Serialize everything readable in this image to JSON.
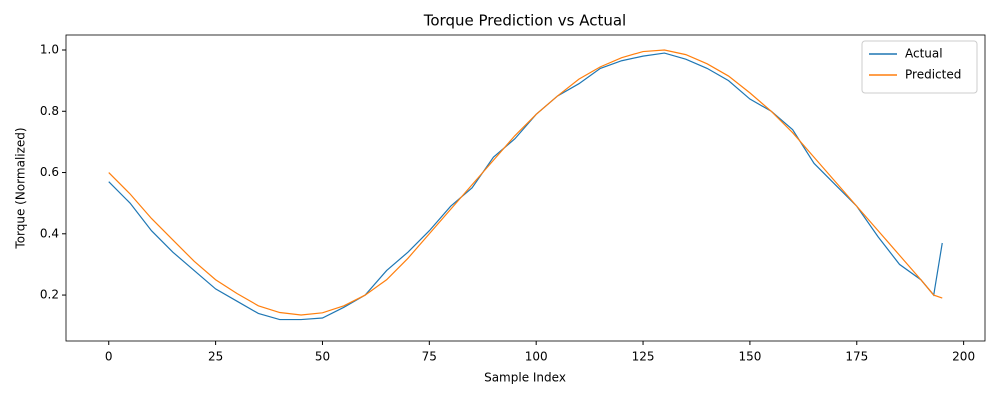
{
  "chart_data": {
    "type": "line",
    "title": "Torque Prediction vs Actual",
    "x_label": "Sample Index",
    "y_label": "Torque (Normalized)",
    "x": [
      0,
      5,
      10,
      15,
      20,
      25,
      30,
      35,
      40,
      45,
      50,
      55,
      60,
      65,
      70,
      75,
      80,
      85,
      90,
      95,
      100,
      105,
      110,
      115,
      120,
      125,
      130,
      135,
      140,
      145,
      150,
      155,
      160,
      165,
      170,
      175,
      180,
      185,
      190,
      193,
      195
    ],
    "series": [
      {
        "name": "Actual",
        "color": "#1f77b4",
        "values": [
          0.57,
          0.5,
          0.41,
          0.34,
          0.28,
          0.22,
          0.18,
          0.14,
          0.12,
          0.12,
          0.125,
          0.16,
          0.2,
          0.28,
          0.34,
          0.41,
          0.49,
          0.55,
          0.65,
          0.71,
          0.79,
          0.85,
          0.89,
          0.94,
          0.965,
          0.98,
          0.99,
          0.97,
          0.94,
          0.9,
          0.84,
          0.8,
          0.74,
          0.63,
          0.56,
          0.49,
          0.39,
          0.3,
          0.25,
          0.2,
          0.37
        ]
      },
      {
        "name": "Predicted",
        "color": "#ff7f0e",
        "values": [
          0.6,
          0.53,
          0.45,
          0.38,
          0.31,
          0.25,
          0.205,
          0.165,
          0.143,
          0.135,
          0.142,
          0.165,
          0.2,
          0.25,
          0.32,
          0.4,
          0.48,
          0.56,
          0.64,
          0.72,
          0.79,
          0.85,
          0.905,
          0.945,
          0.975,
          0.995,
          1.0,
          0.985,
          0.955,
          0.915,
          0.86,
          0.8,
          0.73,
          0.65,
          0.57,
          0.49,
          0.41,
          0.33,
          0.25,
          0.2,
          0.19
        ]
      }
    ],
    "xlim": [
      -10,
      205
    ],
    "ylim": [
      0.05,
      1.049
    ],
    "xticks": [
      0,
      25,
      50,
      75,
      100,
      125,
      150,
      175,
      200
    ],
    "yticks": [
      0.2,
      0.4,
      0.6,
      0.8,
      {
        "value": 1,
        "label": "1.0"
      }
    ],
    "legend": "upper right",
    "grid": false
  }
}
